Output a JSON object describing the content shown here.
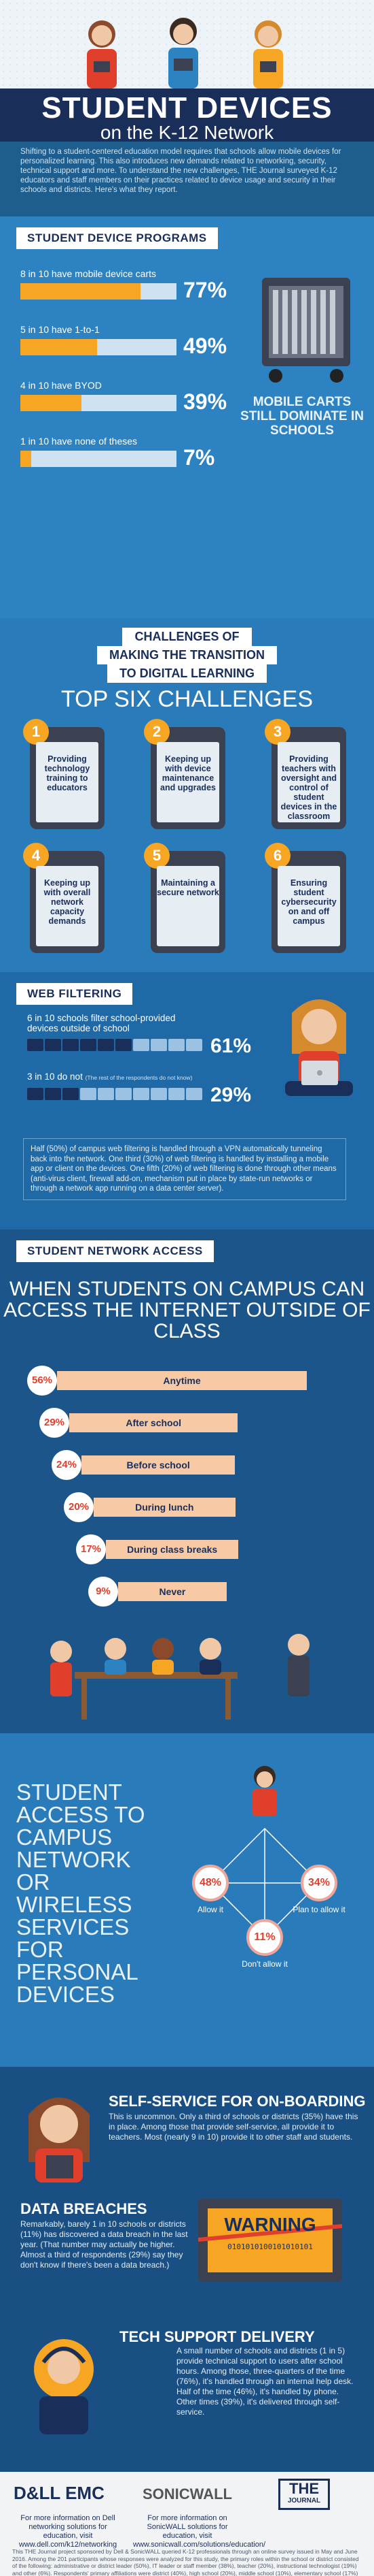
{
  "header": {
    "title_line1": "STUDENT DEVICES",
    "title_line2": "on the K-12 Network",
    "intro": "Shifting to a student-centered education model requires that schools allow mobile devices for personalized learning. This also introduces new demands related to networking, security, technical support and more. To understand the new challenges, THE Journal surveyed K-12 educators and staff members on their practices related to device usage and security in their schools and districts. Here's what they report."
  },
  "programs": {
    "title": "STUDENT DEVICE PROGRAMS",
    "side_text": "MOBILE CARTS STILL DOMINATE IN SCHOOLS"
  },
  "challenges": {
    "heading_line1": "CHALLENGES OF",
    "heading_line2": "MAKING THE TRANSITION",
    "heading_line3": "TO DIGITAL LEARNING",
    "top_title": "TOP SIX CHALLENGES",
    "items": [
      {
        "num": "1",
        "text": "Providing technology training to educators"
      },
      {
        "num": "2",
        "text": "Keeping up with device maintenance and upgrades"
      },
      {
        "num": "3",
        "text": "Providing teachers with oversight and control of student devices in the classroom"
      },
      {
        "num": "4",
        "text": "Keeping up with overall network capacity demands"
      },
      {
        "num": "5",
        "text": "Maintaining a secure network"
      },
      {
        "num": "6",
        "text": "Ensuring student cybersecurity on and off campus"
      }
    ]
  },
  "webfilter": {
    "title": "WEB FILTERING",
    "line1": "6 in 10 schools filter school-provided devices outside of school",
    "pct1": "61%",
    "line2": "3 in 10 do not",
    "line2_note": "(The rest of the respondents do not know)",
    "pct2": "29%",
    "note": "Half (50%) of campus web filtering is handled through a VPN automatically tunneling back into the network. One third (30%) of web filtering is handled by installing a mobile app or client on the devices. One fifth (20%) of web filtering is done through other means (anti-virus client, firewall add-on, mechanism put in place by state-run networks or through a network app running on a data center server)."
  },
  "netaccess": {
    "title": "STUDENT NETWORK ACCESS",
    "heading": "WHEN STUDENTS ON CAMPUS CAN ACCESS THE INTERNET OUTSIDE OF CLASS"
  },
  "campus": {
    "heading": "STUDENT ACCESS TO CAMPUS NETWORK OR WIRELESS SERVICES FOR PERSONAL DEVICES"
  },
  "bottom": {
    "self_title": "SELF-SERVICE FOR ON-BOARDING",
    "self_text": "This is uncommon. Only a third of schools or districts (35%) have this in place. Among those that provide self-service, all provide it to teachers. Most (nearly 9 in 10) provide it to other staff and students.",
    "breach_title": "DATA BREACHES",
    "breach_text": "Remarkably, barely 1 in 10 schools or districts (11%) has discovered a data breach in the last year. (That number may actually be higher. Almost a third of respondents (29%) say they don't know if there's been a data breach.)",
    "warning_label": "WARNING",
    "warning_bits": "0101010100101010101",
    "tech_title": "TECH SUPPORT DELIVERY",
    "tech_text": "A small number of schools and districts (1 in 5) provide technical support to users after school hours. Among those, three-quarters of the time (76%), it's handled through an internal help desk. Half of the time (46%), it's handled by phone. Other times (39%), it's delivered through self-service."
  },
  "footer": {
    "logo1": "D&LL EMC",
    "logo2": "SONICWALL",
    "logo3_line1": "THE",
    "logo3_line2": "JOURNAL",
    "text1": "For more information on Dell networking solutions for education, visit www.dell.com/k12/networking",
    "text2": "For more information on SonicWALL solutions for education, visit www.sonicwall.com/solutions/education/",
    "fine": "This THE Journal project sponsored by Dell & SonicWALL queried K-12 professionals through an online survey issued in May and June 2016. Among the 201 participants whose responses were analyzed for this study, the primary roles within the school or district consisted of the following: administrative or district leader (50%), IT leader or staff member (38%), teacher (20%), instructional technologist (19%) and other (6%). Respondents' primary affiliations were district (40%), high school (20%), middle school (10%), elementary school (17%) and other (9%). All responses from non-school and non-district organizations were removed."
  },
  "chart_data": [
    {
      "type": "bar",
      "title": "STUDENT DEVICE PROGRAMS",
      "categories": [
        "8 in 10 have mobile device carts",
        "5 in 10 have 1-to-1",
        "4 in 10 have BYOD",
        "1 in 10 have none of theses"
      ],
      "values": [
        77,
        49,
        39,
        7
      ],
      "labels": [
        "77%",
        "49%",
        "39%",
        "7%"
      ],
      "ylim": [
        0,
        100
      ]
    },
    {
      "type": "bar",
      "title": "WEB FILTERING",
      "categories": [
        "6 in 10 schools filter school-provided devices outside of school",
        "3 in 10 do not"
      ],
      "values": [
        61,
        29
      ],
      "labels": [
        "61%",
        "29%"
      ]
    },
    {
      "type": "bar",
      "title": "WHEN STUDENTS ON CAMPUS CAN ACCESS THE INTERNET OUTSIDE OF CLASS",
      "categories": [
        "Anytime",
        "After school",
        "Before school",
        "During lunch",
        "During class breaks",
        "Never"
      ],
      "values": [
        56,
        29,
        24,
        20,
        17,
        9
      ],
      "labels": [
        "56%",
        "29%",
        "24%",
        "20%",
        "17%",
        "9%"
      ],
      "ylim": [
        0,
        100
      ]
    },
    {
      "type": "pie",
      "title": "STUDENT ACCESS TO CAMPUS NETWORK OR WIRELESS SERVICES FOR PERSONAL DEVICES",
      "categories": [
        "Allow it",
        "Plan to allow it",
        "Don't allow it"
      ],
      "values": [
        48,
        34,
        11
      ],
      "labels": [
        "48%",
        "34%",
        "11%"
      ]
    }
  ],
  "colors": {
    "accent": "#f6a623",
    "navy": "#1a2e5a",
    "red": "#e0402b",
    "track": "#cfe2f1"
  }
}
